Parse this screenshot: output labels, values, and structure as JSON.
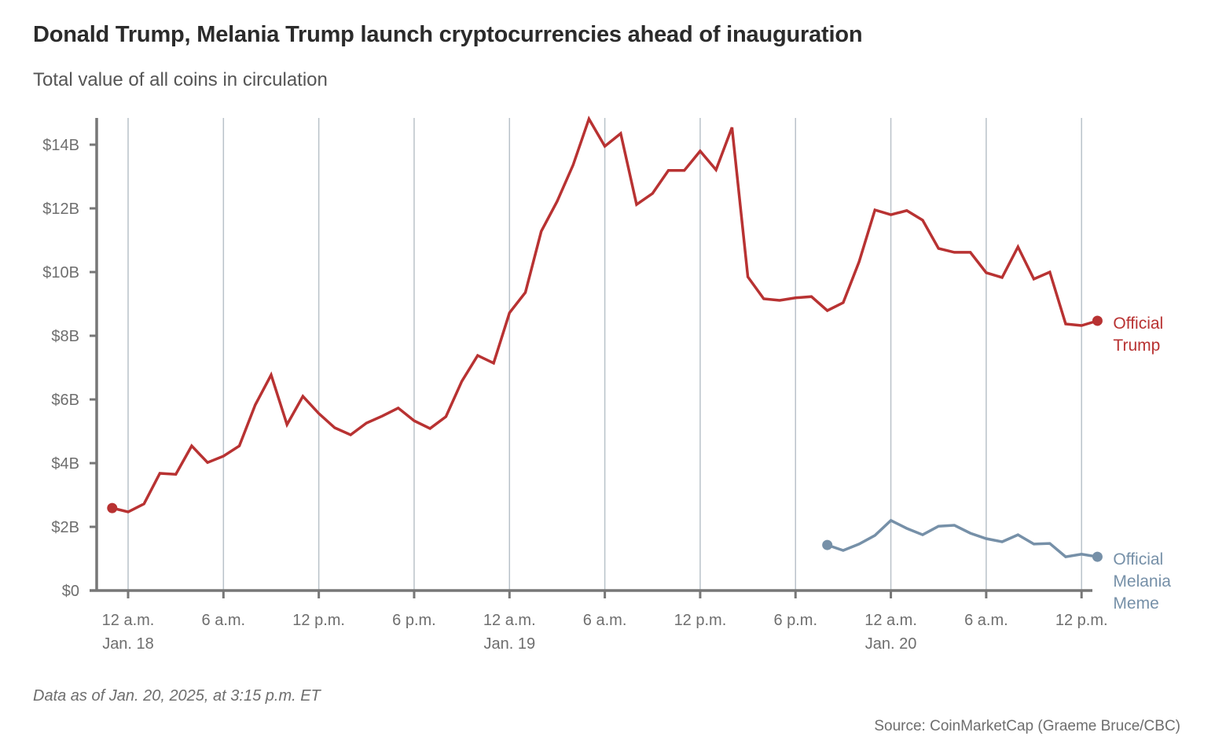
{
  "header": {
    "title": "Donald Trump, Melania Trump launch cryptocurrencies ahead of inauguration",
    "subtitle": "Total value of all coins in circulation"
  },
  "footer": {
    "note": "Data as of Jan. 20, 2025, at 3:15 p.m. ET",
    "source": "Source: CoinMarketCap (Graeme Bruce/CBC)"
  },
  "chart_data": {
    "type": "line",
    "title": "Donald Trump, Melania Trump launch cryptocurrencies ahead of inauguration",
    "subtitle": "Total value of all coins in circulation",
    "xlabel": "",
    "ylabel": "",
    "x_unit": "hours since 12 a.m. Jan. 18 (ET)",
    "xlim": [
      -2,
      62.5
    ],
    "ylim": [
      0,
      14.8
    ],
    "y_ticks": [
      0,
      2,
      4,
      6,
      8,
      10,
      12,
      14
    ],
    "y_tick_labels": [
      "$0",
      "$2B",
      "$4B",
      "$6B",
      "$8B",
      "$10B",
      "$12B",
      "$14B"
    ],
    "x_ticks": [
      0,
      6,
      12,
      18,
      24,
      30,
      36,
      42,
      48,
      54,
      60
    ],
    "x_tick_labels": [
      [
        "12 a.m.",
        "Jan. 18"
      ],
      [
        "6 a.m."
      ],
      [
        "12 p.m."
      ],
      [
        "6 p.m."
      ],
      [
        "12 a.m.",
        "Jan. 19"
      ],
      [
        "6 a.m."
      ],
      [
        "12 p.m."
      ],
      [
        "6 p.m."
      ],
      [
        "12 a.m.",
        "Jan. 20"
      ],
      [
        "6 a.m."
      ],
      [
        "12 p.m."
      ]
    ],
    "grid": "vertical",
    "colors": {
      "trump": "#b83232",
      "melania": "#7690a8",
      "grid": "#b9c2c9",
      "axis": "#777777"
    },
    "series": [
      {
        "name": "Official Trump",
        "label_lines": [
          "Official",
          "Trump"
        ],
        "color": "#b83232",
        "x": [
          -1,
          0,
          1,
          2,
          3,
          4,
          5,
          6,
          7,
          8,
          9,
          10,
          11,
          12,
          13,
          14,
          15,
          16,
          17,
          18,
          19,
          20,
          21,
          22,
          23,
          24,
          25,
          26,
          27,
          28,
          29,
          30,
          31,
          32,
          33,
          34,
          35,
          36,
          37,
          38,
          39,
          40,
          41,
          42,
          43,
          44,
          45,
          46,
          47,
          48,
          49,
          50,
          51,
          52,
          53,
          54,
          55,
          56,
          57,
          58,
          59,
          60,
          61
        ],
        "values": [
          2.59,
          2.47,
          2.72,
          3.68,
          3.65,
          4.54,
          4.02,
          4.22,
          4.54,
          5.83,
          6.77,
          5.21,
          6.1,
          5.56,
          5.11,
          4.89,
          5.26,
          5.48,
          5.73,
          5.33,
          5.09,
          5.46,
          6.57,
          7.38,
          7.14,
          8.72,
          9.36,
          11.28,
          12.22,
          13.36,
          14.81,
          13.95,
          14.35,
          12.12,
          12.47,
          13.19,
          13.19,
          13.8,
          13.21,
          14.54,
          9.85,
          9.16,
          9.11,
          9.19,
          9.23,
          8.79,
          9.04,
          10.32,
          11.95,
          11.8,
          11.93,
          11.63,
          10.74,
          10.62,
          10.62,
          9.98,
          9.83,
          10.79,
          9.78,
          10.0,
          8.37,
          8.32,
          8.47
        ]
      },
      {
        "name": "Official Melania Meme",
        "label_lines": [
          "Official",
          "Melania",
          "Meme"
        ],
        "color": "#7690a8",
        "x": [
          44,
          45,
          46,
          47,
          48,
          49,
          50,
          51,
          52,
          53,
          54,
          55,
          56,
          57,
          58,
          59,
          60,
          61
        ],
        "values": [
          1.43,
          1.26,
          1.46,
          1.73,
          2.2,
          1.95,
          1.75,
          2.02,
          2.05,
          1.8,
          1.63,
          1.53,
          1.75,
          1.46,
          1.48,
          1.06,
          1.14,
          1.06
        ]
      }
    ],
    "legend": "inline-right-of-line-ends",
    "annotations": [
      "Data as of Jan. 20, 2025, at 3:15 p.m. ET"
    ]
  }
}
